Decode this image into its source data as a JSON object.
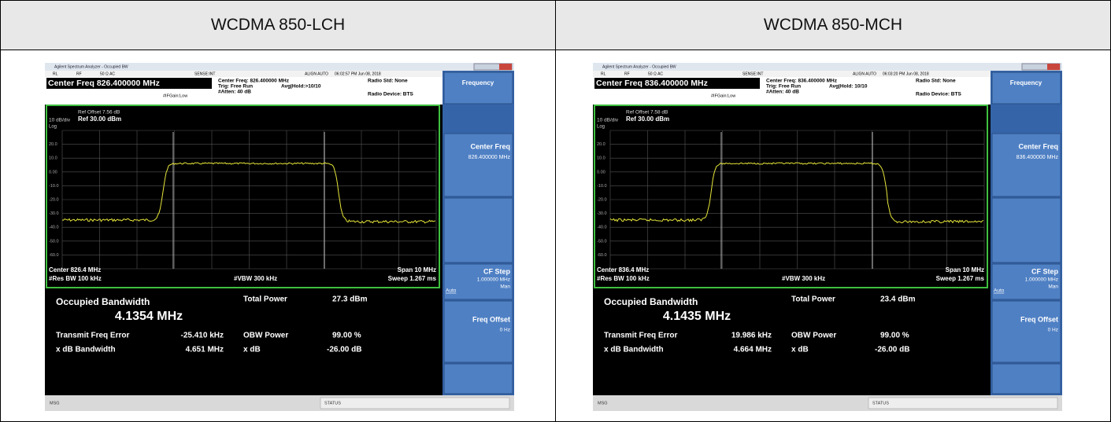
{
  "table": {
    "headers": [
      "WCDMA 850-LCH",
      "WCDMA 850-MCH"
    ]
  },
  "panels": [
    {
      "window_title": "Agilent Spectrum Analyzer - Occupied BW",
      "rl": "RL",
      "rf": "RF",
      "impedance": "50 Ω AC",
      "sense": "SENSE:INT",
      "align": "ALIGN AUTO",
      "timestamp": "06:02:57 PM Jun 08, 2018",
      "center_freq_header": "Center Freq 826.400000 MHz",
      "info_center_freq": "Center Freq: 826.400000 MHz",
      "trig": "Trig: Free Run",
      "avg_hold": "Avg|Hold:>10/10",
      "atten": "#Atten: 40 dB",
      "if_gain": "#IFGain:Low",
      "radio_std": "Radio Std: None",
      "radio_device": "Radio Device: BTS",
      "ref_offset": "Ref Offset 7.56 dB",
      "scale": "10 dB/div",
      "ref_level": "Ref 30.00 dBm",
      "log": "Log",
      "y_labels": [
        "20.0",
        "10.0",
        "0.00",
        "-10.0",
        "-20.0",
        "-30.0",
        "-40.0",
        "-50.0",
        "-60.0"
      ],
      "center": "Center 826.4 MHz",
      "span": "Span 10 MHz",
      "res_bw": "#Res BW 100 kHz",
      "vbw": "#VBW 300 kHz",
      "sweep": "Sweep 1.267 ms",
      "obw_label": "Occupied Bandwidth",
      "obw_value": "4.1354 MHz",
      "total_power_label": "Total Power",
      "total_power": "27.3 dBm",
      "freq_error_label": "Transmit Freq Error",
      "freq_error": "-25.410 kHz",
      "obw_power_label": "OBW Power",
      "obw_power": "99.00 %",
      "xdb_bw_label": "x dB Bandwidth",
      "xdb_bw": "4.651 MHz",
      "xdb_label": "x dB",
      "xdb": "-26.00 dB",
      "softkeys": {
        "menu": "Frequency",
        "center_freq_label": "Center Freq",
        "center_freq_value": "826.400000 MHz",
        "cf_step_label": "CF Step",
        "cf_step_value": "1.000000 MHz",
        "auto": "Auto",
        "man": "Man",
        "freq_offset_label": "Freq Offset",
        "freq_offset_value": "0 Hz"
      },
      "msg": "MSG",
      "status": "STATUS"
    },
    {
      "window_title": "Agilent Spectrum Analyzer - Occupied BW",
      "rl": "RL",
      "rf": "RF",
      "impedance": "50 Ω AC",
      "sense": "SENSE:INT",
      "align": "ALIGN AUTO",
      "timestamp": "06:03:20 PM Jun 08, 2018",
      "center_freq_header": "Center Freq 836.400000 MHz",
      "info_center_freq": "Center Freq: 836.400000 MHz",
      "trig": "Trig: Free Run",
      "avg_hold": "Avg|Hold: 10/10",
      "atten": "#Atten: 40 dB",
      "if_gain": "#IFGain:Low",
      "radio_std": "Radio Std: None",
      "radio_device": "Radio Device: BTS",
      "ref_offset": "Ref Offset 7.58 dB",
      "scale": "10 dB/div",
      "ref_level": "Ref 30.00 dBm",
      "log": "Log",
      "y_labels": [
        "20.0",
        "10.0",
        "0.00",
        "-10.0",
        "-20.0",
        "-30.0",
        "-40.0",
        "-50.0",
        "-60.0"
      ],
      "center": "Center 836.4 MHz",
      "span": "Span 10 MHz",
      "res_bw": "#Res BW 100 kHz",
      "vbw": "#VBW 300 kHz",
      "sweep": "Sweep 1.267 ms",
      "obw_label": "Occupied Bandwidth",
      "obw_value": "4.1435 MHz",
      "total_power_label": "Total Power",
      "total_power": "23.4 dBm",
      "freq_error_label": "Transmit Freq Error",
      "freq_error": "19.986 kHz",
      "obw_power_label": "OBW Power",
      "obw_power": "99.00 %",
      "xdb_bw_label": "x dB Bandwidth",
      "xdb_bw": "4.664 MHz",
      "xdb_label": "x dB",
      "xdb": "-26.00 dB",
      "softkeys": {
        "menu": "Frequency",
        "center_freq_label": "Center Freq",
        "center_freq_value": "836.400000 MHz",
        "cf_step_label": "CF Step",
        "cf_step_value": "1.000000 MHz",
        "auto": "Auto",
        "man": "Man",
        "freq_offset_label": "Freq Offset",
        "freq_offset_value": "0 Hz"
      },
      "msg": "MSG",
      "status": "STATUS"
    }
  ]
}
